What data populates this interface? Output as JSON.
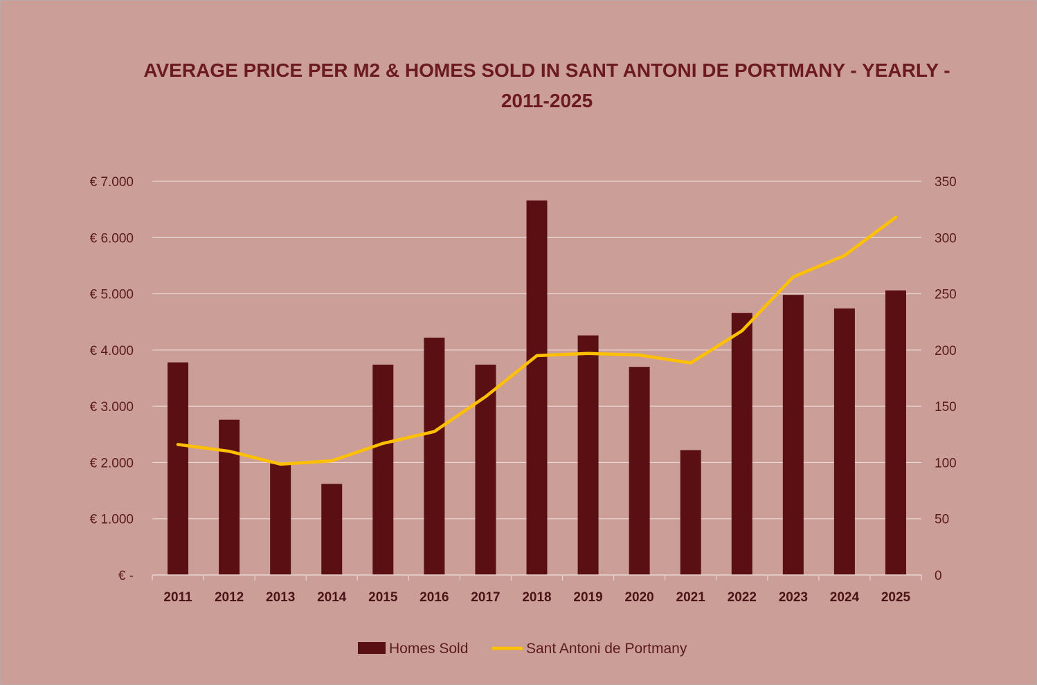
{
  "title": "AVERAGE PRICE PER M2 & HOMES SOLD IN SANT ANTONI DE PORTMANY - YEARLY - 2011-2025",
  "colors": {
    "background": "#cc9e98",
    "bars": "#5a1013",
    "line": "#ffc000",
    "grid": "#e8d4d1",
    "title": "#6b1a1e"
  },
  "chart_data": {
    "type": "bar",
    "title": "AVERAGE PRICE PER M2 & HOMES SOLD IN SANT ANTONI DE PORTMANY - YEARLY - 2011-2025",
    "categories": [
      "2011",
      "2012",
      "2013",
      "2014",
      "2015",
      "2016",
      "2017",
      "2018",
      "2019",
      "2020",
      "2021",
      "2022",
      "2023",
      "2024",
      "2025"
    ],
    "y_left": {
      "ylim": [
        0,
        7000
      ],
      "ticks": [
        0,
        1000,
        2000,
        3000,
        4000,
        5000,
        6000,
        7000
      ],
      "tick_labels": [
        "€ -",
        "€ 1.000",
        "€ 2.000",
        "€ 3.000",
        "€ 4.000",
        "€ 5.000",
        "€ 6.000",
        "€ 7.000"
      ]
    },
    "y_right": {
      "ylim": [
        0,
        350
      ],
      "ticks": [
        0,
        50,
        100,
        150,
        200,
        250,
        300,
        350
      ],
      "tick_labels": [
        "0",
        "50",
        "100",
        "150",
        "200",
        "250",
        "300",
        "350"
      ]
    },
    "grid": true,
    "legend_position": "bottom",
    "series": [
      {
        "name": "Homes Sold",
        "type": "bar",
        "axis": "right",
        "values": [
          189,
          138,
          100,
          81,
          187,
          211,
          187,
          333,
          213,
          185,
          111,
          233,
          249,
          237,
          253
        ]
      },
      {
        "name": "Sant Antoni de Portmany",
        "type": "line",
        "axis": "left",
        "values": [
          2320,
          2200,
          1970,
          2030,
          2340,
          2550,
          3170,
          3900,
          3940,
          3910,
          3770,
          4340,
          5300,
          5680,
          6360
        ]
      }
    ]
  }
}
